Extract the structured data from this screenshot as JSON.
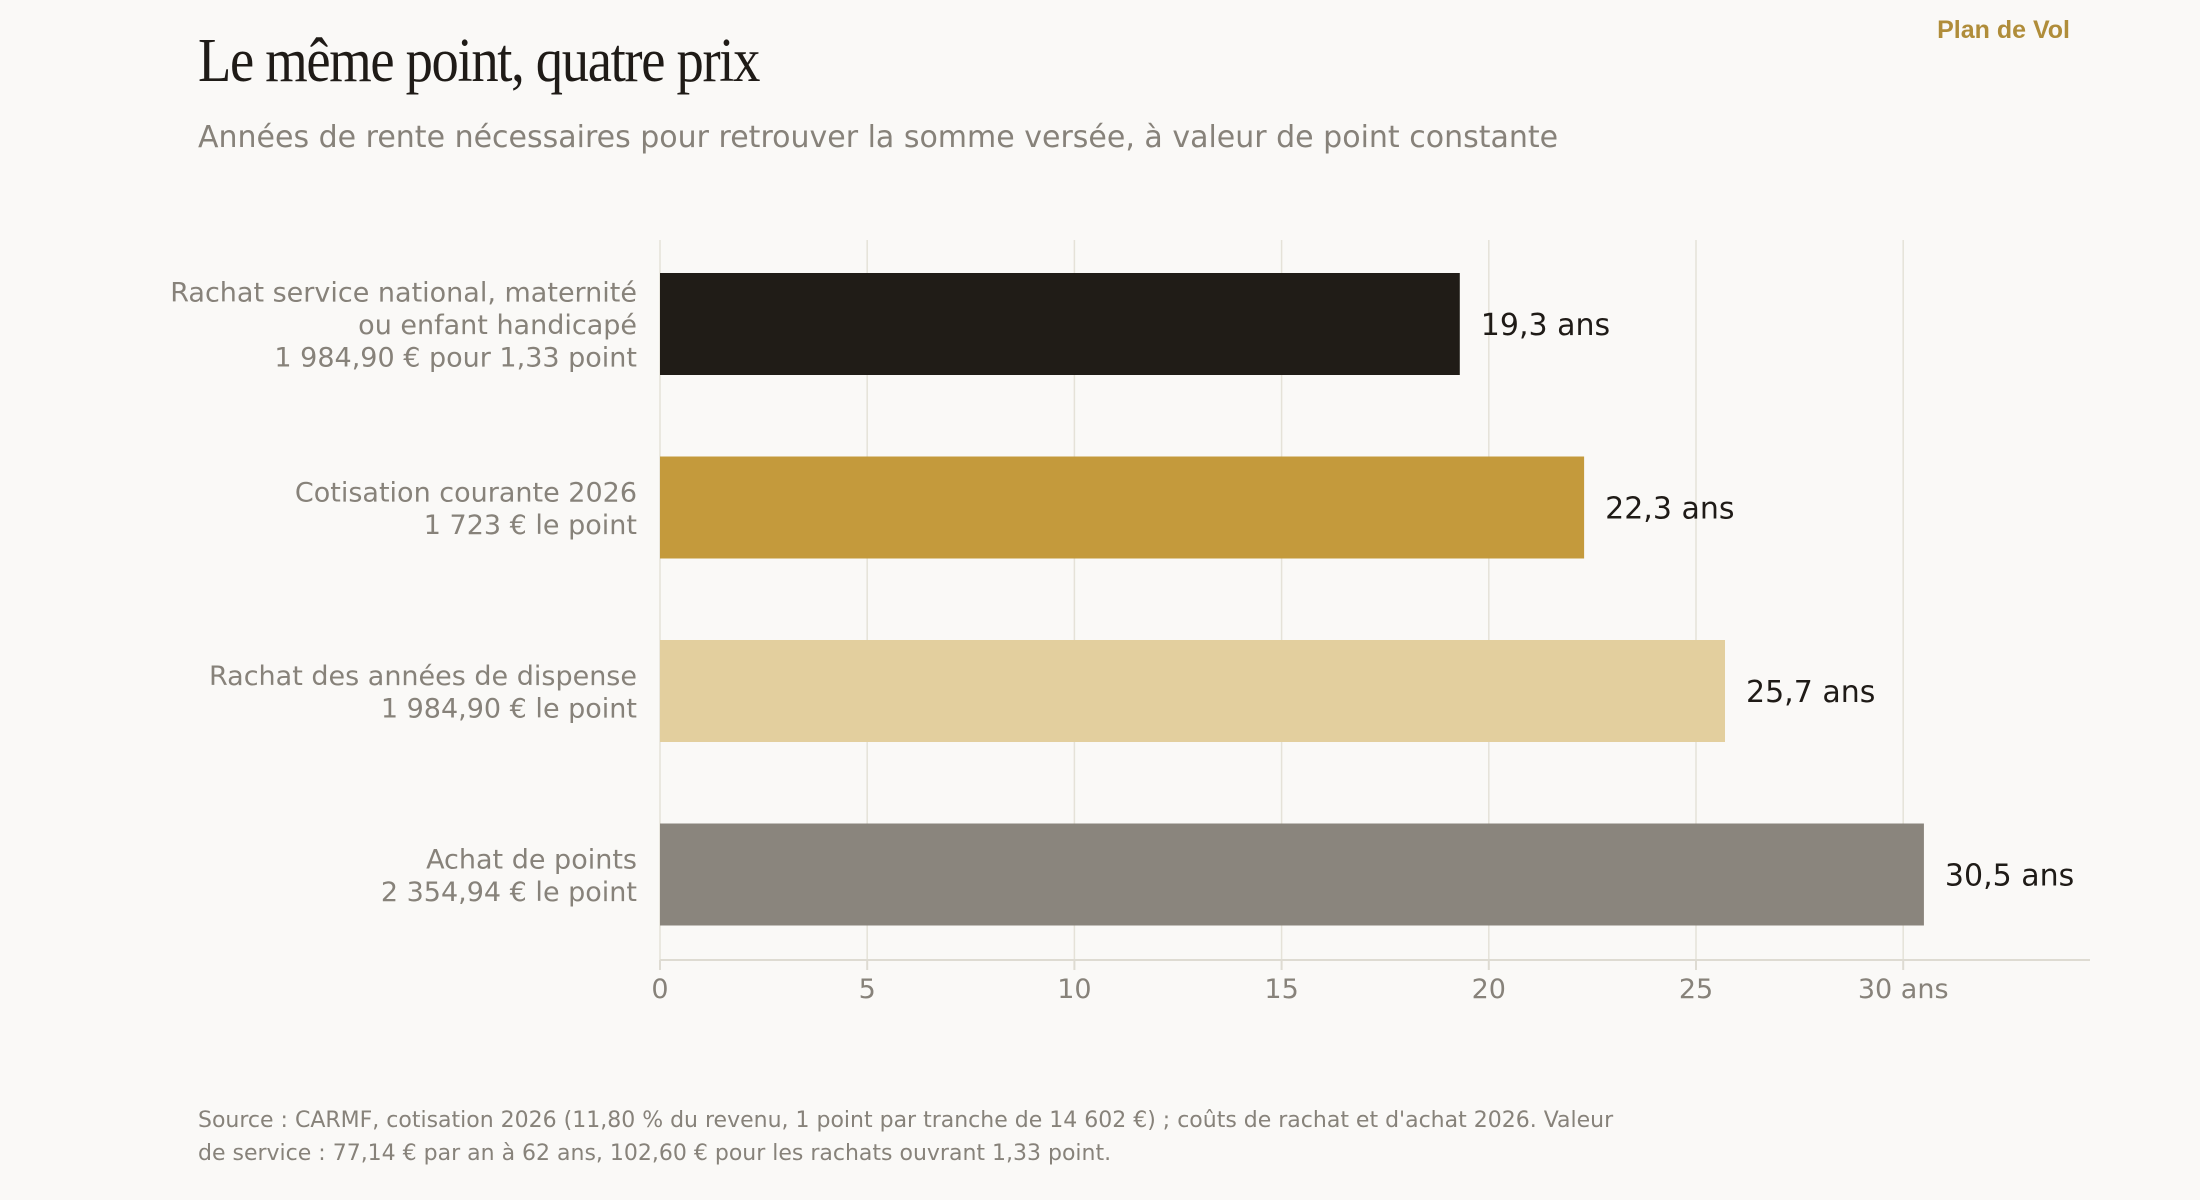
{
  "brand": "Plan de Vol",
  "chart_data": {
    "type": "bar",
    "orientation": "horizontal",
    "title": "Le même point, quatre prix",
    "subtitle": "Années de rente nécessaires pour retrouver la somme versée, à valeur de point constante",
    "categories": [
      {
        "lines": [
          "Rachat service national, maternité",
          "ou enfant handicapé",
          "1 984,90 € pour 1,33 point"
        ]
      },
      {
        "lines": [
          "Cotisation courante 2026",
          "1 723 € le point"
        ]
      },
      {
        "lines": [
          "Rachat des années de dispense",
          "1 984,90 € le point"
        ]
      },
      {
        "lines": [
          "Achat de points",
          "2 354,94 € le point"
        ]
      }
    ],
    "values": [
      19.3,
      22.3,
      25.7,
      30.5
    ],
    "value_labels": [
      "19,3 ans",
      "22,3 ans",
      "25,7 ans",
      "30,5 ans"
    ],
    "colors": [
      "#201c17",
      "#c49a3c",
      "#e3cf9e",
      "#8a857d"
    ],
    "xlim": [
      0,
      34.5
    ],
    "xticks": [
      0,
      5,
      10,
      15,
      20,
      25,
      30
    ],
    "xtick_labels": [
      "0",
      "5",
      "10",
      "15",
      "20",
      "25",
      "30 ans"
    ],
    "grid": true,
    "source": "Source : CARMF, cotisation 2026 (11,80 % du revenu, 1 point par tranche de 14 602 €) ; coûts de rachat et d'achat 2026. Valeur de service : 77,14 € par an à 62 ans, 102,60 € pour les rachats ouvrant 1,33 point."
  }
}
